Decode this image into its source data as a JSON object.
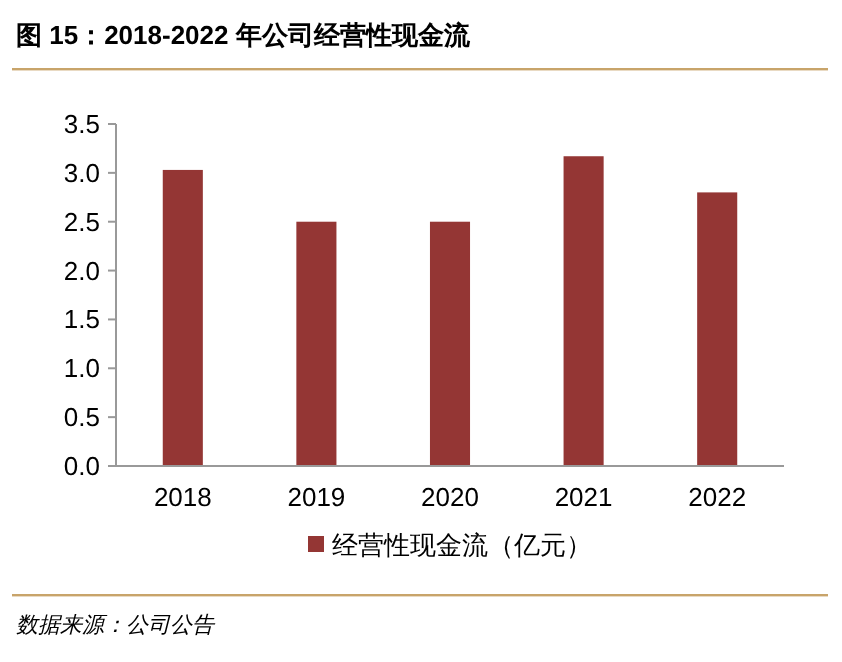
{
  "chart_data": {
    "type": "bar",
    "title": "图 15：2018-2022 年公司经营性现金流",
    "categories": [
      "2018",
      "2019",
      "2020",
      "2021",
      "2022"
    ],
    "series": [
      {
        "name": "经营性现金流（亿元）",
        "color": "#943634",
        "values": [
          3.03,
          2.5,
          2.5,
          3.17,
          2.8
        ]
      }
    ],
    "ylim": [
      0,
      3.5
    ],
    "yticks": [
      {
        "value": 0,
        "label": "0.0"
      },
      {
        "value": 0.5,
        "label": "0.5"
      },
      {
        "value": 1,
        "label": "1.0"
      },
      {
        "value": 1.5,
        "label": "1.5"
      },
      {
        "value": 2,
        "label": "2.0"
      },
      {
        "value": 2.5,
        "label": "2.5"
      },
      {
        "value": 3,
        "label": "3.0"
      },
      {
        "value": 3.5,
        "label": "3.5"
      }
    ],
    "grid": false,
    "legend": "bottom",
    "annotations": [
      "数据来源：公司公告"
    ]
  }
}
